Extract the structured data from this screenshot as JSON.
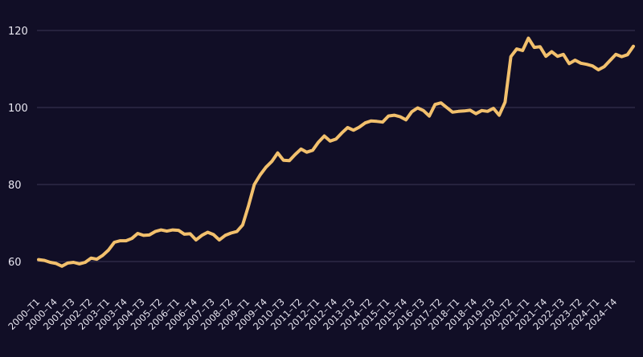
{
  "chart_data": {
    "type": "line",
    "title": "",
    "xlabel": "",
    "ylabel": "",
    "ylim": [
      50,
      120
    ],
    "y_ticks": [
      60,
      80,
      100,
      120
    ],
    "grid": "horizontal",
    "line_color": "#f2c06d",
    "background_color": "#110e26",
    "x_tick_labels": [
      "2000–T1",
      "2000–T4",
      "2001–T3",
      "2002–T2",
      "2003–T1",
      "2003–T4",
      "2004–T3",
      "2005–T2",
      "2006–T1",
      "2006–T4",
      "2007–T3",
      "2008–T2",
      "2009–T1",
      "2009–T4",
      "2010–T3",
      "2011–T2",
      "2012–T1",
      "2012–T4",
      "2013–T3",
      "2014–T2",
      "2015–T1",
      "2015–T4",
      "2016–T3",
      "2017–T2",
      "2018–T1",
      "2018–T4",
      "2019–T3",
      "2020–T2",
      "2021–T1",
      "2021–T4",
      "2022–T3",
      "2023–T2",
      "2024–T1",
      "2024–T4"
    ],
    "series": [
      {
        "values": [
          60.5,
          60.3,
          59.8,
          59.5,
          58.8,
          59.6,
          59.8,
          59.4,
          59.8,
          60.9,
          60.6,
          61.6,
          63.0,
          65.0,
          65.4,
          65.4,
          66.0,
          67.3,
          66.8,
          66.9,
          67.8,
          68.2,
          67.9,
          68.2,
          68.1,
          67.1,
          67.2,
          65.6,
          66.8,
          67.6,
          67.0,
          65.6,
          66.8,
          67.4,
          67.8,
          69.5,
          74.5,
          80.0,
          82.5,
          84.5,
          86.0,
          88.2,
          86.3,
          86.2,
          87.8,
          89.2,
          88.4,
          88.9,
          91.0,
          92.6,
          91.3,
          91.8,
          93.4,
          94.8,
          94.1,
          94.9,
          96.0,
          96.5,
          96.4,
          96.2,
          97.8,
          98.0,
          97.6,
          96.8,
          98.9,
          99.9,
          99.2,
          97.8,
          100.8,
          101.2,
          100.0,
          98.8,
          99.0,
          99.1,
          99.3,
          98.4,
          99.2,
          99.0,
          99.8,
          98.0,
          101.4,
          113.2,
          115.2,
          114.8,
          118.0,
          115.6,
          115.8,
          113.3,
          114.5,
          113.3,
          113.8,
          111.4,
          112.3,
          111.5,
          111.2,
          110.8,
          109.8,
          110.6,
          112.2,
          113.8,
          113.2,
          113.7,
          115.9
        ]
      }
    ]
  }
}
